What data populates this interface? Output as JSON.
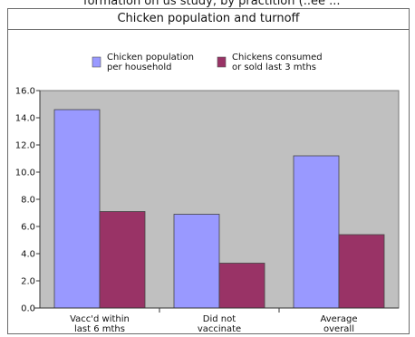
{
  "page": {
    "top_sliver_text": "formation on  us  study, by practition  (..ee  ..."
  },
  "colors": {
    "series1": "#9999ff",
    "series2": "#993366",
    "plot_background": "#c0c0c0",
    "frame": "#6b6b6b"
  },
  "chart_data": {
    "type": "bar",
    "title": "Chicken population and turnoff",
    "categories": [
      "Vacc'd within\nlast 6 mths",
      "Did not\nvaccinate",
      "Average\noverall"
    ],
    "series": [
      {
        "name": "Chicken population\nper household",
        "values": [
          14.6,
          6.9,
          11.2
        ]
      },
      {
        "name": "Chickens consumed\nor sold last 3 mths",
        "values": [
          7.1,
          3.3,
          5.4
        ]
      }
    ],
    "ylim": [
      0,
      16
    ],
    "yticks": [
      "0.0",
      "2.0",
      "4.0",
      "6.0",
      "8.0",
      "10.0",
      "12.0",
      "14.0",
      "16.0"
    ],
    "grid": false,
    "legend": "top-center",
    "xlabel": "",
    "ylabel": ""
  }
}
